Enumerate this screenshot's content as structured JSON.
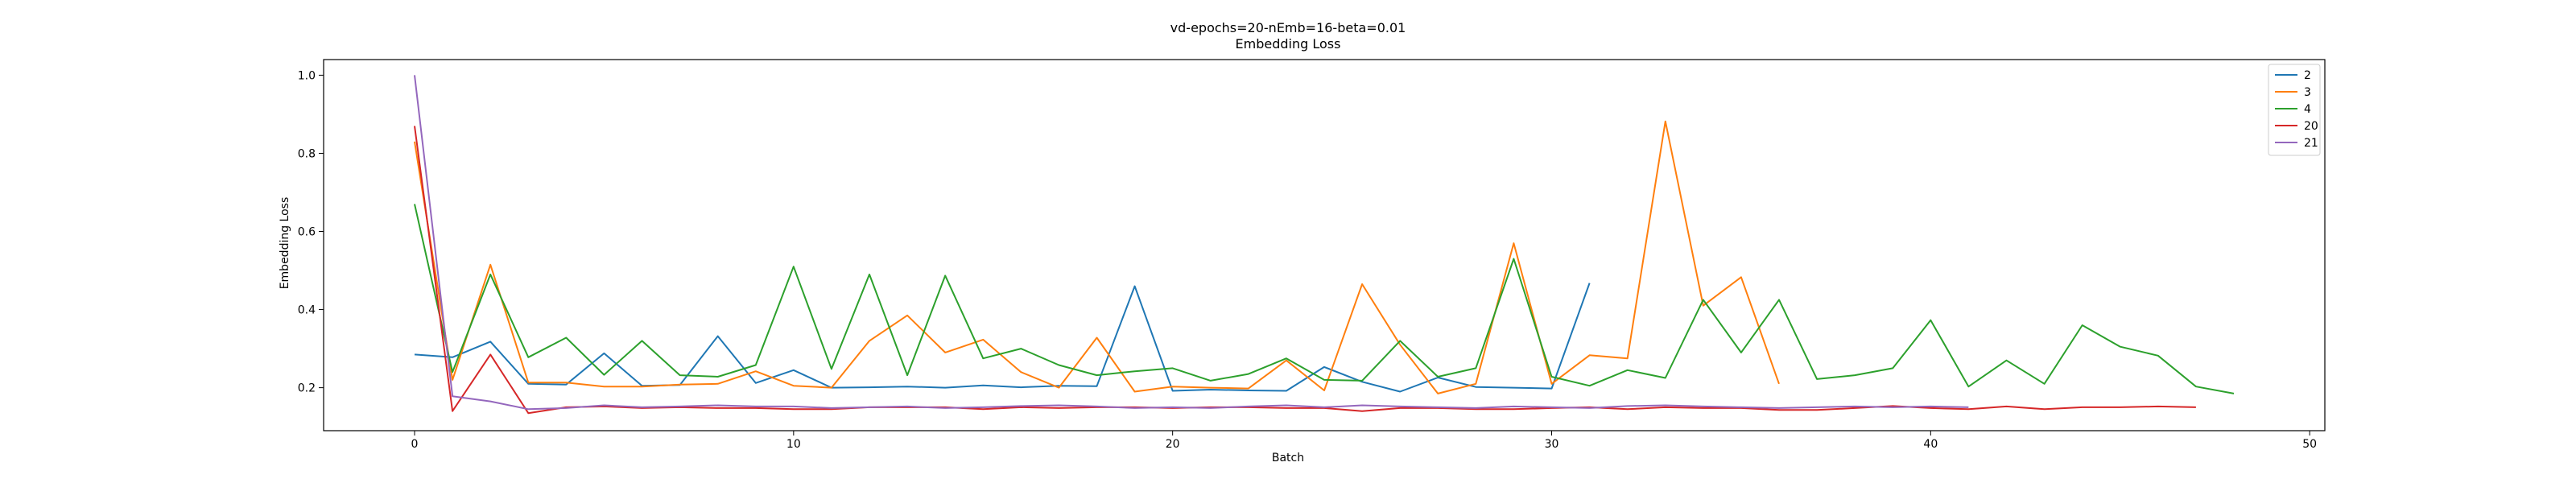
{
  "chart_data": {
    "type": "line",
    "title": "vd-epochs=20-nEmb=16-beta=0.01",
    "subtitle": "Embedding Loss",
    "xlabel": "Batch",
    "ylabel": "Embedding Loss",
    "xlim": [
      -2.4,
      50.4
    ],
    "ylim": [
      0.09,
      1.04
    ],
    "xticks": [
      0,
      10,
      20,
      30,
      40,
      50
    ],
    "yticks": [
      0.2,
      0.4,
      0.6,
      0.8,
      1.0
    ],
    "xtick_labels": [
      "0",
      "10",
      "20",
      "30",
      "40",
      "50"
    ],
    "ytick_labels": [
      "0.2",
      "0.4",
      "0.6",
      "0.8",
      "1.0"
    ],
    "grid": false,
    "legend_position": "top-right",
    "series": [
      {
        "name": "2",
        "color": "#1f77b4",
        "values": [
          0.285,
          0.278,
          0.318,
          0.21,
          0.208,
          0.288,
          0.205,
          0.207,
          0.332,
          0.212,
          0.245,
          0.2,
          0.201,
          0.203,
          0.2,
          0.206,
          0.201,
          0.205,
          0.204,
          0.46,
          0.192,
          0.195,
          0.193,
          0.192,
          0.253,
          0.215,
          0.19,
          0.226,
          0.202,
          0.2,
          0.198,
          0.468
        ]
      },
      {
        "name": "3",
        "color": "#ff7f0e",
        "values": [
          0.83,
          0.22,
          0.515,
          0.213,
          0.213,
          0.203,
          0.203,
          0.208,
          0.21,
          0.242,
          0.205,
          0.2,
          0.32,
          0.385,
          0.29,
          0.323,
          0.24,
          0.2,
          0.328,
          0.19,
          0.203,
          0.2,
          0.198,
          0.27,
          0.193,
          0.465,
          0.31,
          0.185,
          0.21,
          0.57,
          0.21,
          0.283,
          0.275,
          0.882,
          0.41,
          0.483,
          0.21
        ]
      },
      {
        "name": "4",
        "color": "#2ca02c",
        "values": [
          0.67,
          0.24,
          0.49,
          0.278,
          0.328,
          0.233,
          0.32,
          0.232,
          0.228,
          0.258,
          0.51,
          0.248,
          0.49,
          0.232,
          0.487,
          0.275,
          0.3,
          0.258,
          0.232,
          0.242,
          0.25,
          0.218,
          0.235,
          0.275,
          0.22,
          0.218,
          0.32,
          0.228,
          0.25,
          0.53,
          0.228,
          0.205,
          0.245,
          0.225,
          0.425,
          0.29,
          0.425,
          0.222,
          0.232,
          0.25,
          0.373,
          0.203,
          0.27,
          0.21,
          0.36,
          0.305,
          0.282,
          0.203,
          0.185
        ]
      },
      {
        "name": "20",
        "color": "#d62728",
        "values": [
          0.87,
          0.14,
          0.285,
          0.135,
          0.15,
          0.152,
          0.148,
          0.15,
          0.148,
          0.148,
          0.145,
          0.145,
          0.15,
          0.15,
          0.15,
          0.145,
          0.15,
          0.148,
          0.15,
          0.15,
          0.148,
          0.15,
          0.15,
          0.148,
          0.148,
          0.14,
          0.148,
          0.148,
          0.145,
          0.145,
          0.148,
          0.15,
          0.145,
          0.15,
          0.148,
          0.148,
          0.143,
          0.143,
          0.148,
          0.153,
          0.148,
          0.145,
          0.152,
          0.145,
          0.15,
          0.15,
          0.152,
          0.15
        ]
      },
      {
        "name": "21",
        "color": "#9467bd",
        "values": [
          1.0,
          0.178,
          0.165,
          0.145,
          0.148,
          0.155,
          0.15,
          0.152,
          0.155,
          0.152,
          0.152,
          0.148,
          0.15,
          0.152,
          0.148,
          0.15,
          0.153,
          0.155,
          0.152,
          0.148,
          0.15,
          0.148,
          0.152,
          0.155,
          0.15,
          0.155,
          0.152,
          0.15,
          0.148,
          0.152,
          0.15,
          0.148,
          0.153,
          0.155,
          0.152,
          0.15,
          0.148,
          0.15,
          0.152,
          0.15,
          0.152,
          0.15
        ]
      }
    ]
  }
}
